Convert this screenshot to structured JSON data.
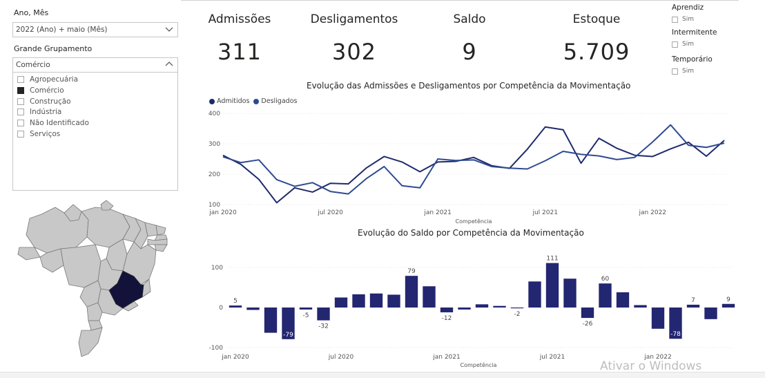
{
  "filters": {
    "period_title": "Ano, Mês",
    "period_value": "2022 (Ano) + maio (Mês)",
    "group_title": "Grande Grupamento",
    "group_value": "Comércio",
    "group_options": [
      {
        "label": "Agropecuária",
        "checked": false
      },
      {
        "label": "Comércio",
        "checked": true
      },
      {
        "label": "Construção",
        "checked": false
      },
      {
        "label": "Indústria",
        "checked": false
      },
      {
        "label": "Não Identificado",
        "checked": false
      },
      {
        "label": "Serviços",
        "checked": false
      }
    ]
  },
  "kpis": {
    "admissoes_label": "Admissões",
    "admissoes_value": "311",
    "desligamentos_label": "Desligamentos",
    "desligamentos_value": "302",
    "saldo_label": "Saldo",
    "saldo_value": "9",
    "estoque_label": "Estoque",
    "estoque_value": "5.709"
  },
  "side_filters": {
    "aprendiz": "Aprendiz",
    "intermitente": "Intermitente",
    "temporario": "Temporário",
    "option_label": "Sim"
  },
  "map": {
    "highlight_color": "#12123a",
    "base_color": "#c8c8c8",
    "highlighted_state": "Minas Gerais"
  },
  "colors": {
    "admitidos": "#1f2a6b",
    "desligados": "#2e4a93",
    "bars": "#232670"
  },
  "chart_data": [
    {
      "type": "line",
      "title": "Evolução das Admissões e Desligamentos por Competência da Movimentação",
      "xlabel": "Competência",
      "ylabel": "",
      "ylim": [
        100,
        400
      ],
      "yticks": [
        100,
        200,
        300,
        400
      ],
      "xtick_labels": [
        "jan 2020",
        "jul 2020",
        "jan 2021",
        "jul 2021",
        "jan 2022"
      ],
      "xtick_index": [
        0,
        6,
        12,
        18,
        24
      ],
      "x": [
        "2020-01",
        "2020-02",
        "2020-03",
        "2020-04",
        "2020-05",
        "2020-06",
        "2020-07",
        "2020-08",
        "2020-09",
        "2020-10",
        "2020-11",
        "2020-12",
        "2021-01",
        "2021-02",
        "2021-03",
        "2021-04",
        "2021-05",
        "2021-06",
        "2021-07",
        "2021-08",
        "2021-09",
        "2021-10",
        "2021-11",
        "2021-12",
        "2022-01",
        "2022-02",
        "2022-03",
        "2022-04",
        "2022-05"
      ],
      "legend_position": "top-left",
      "series": [
        {
          "name": "Admitidos",
          "values": [
            262,
            232,
            183,
            106,
            155,
            141,
            170,
            168,
            220,
            258,
            240,
            208,
            240,
            242,
            255,
            228,
            219,
            282,
            355,
            346,
            236,
            318,
            285,
            262,
            258,
            283,
            305,
            259,
            311
          ]
        },
        {
          "name": "Desligados",
          "values": [
            257,
            238,
            247,
            182,
            160,
            172,
            143,
            135,
            185,
            225,
            162,
            155,
            250,
            245,
            247,
            225,
            220,
            217,
            244,
            275,
            265,
            260,
            248,
            255,
            306,
            362,
            295,
            288,
            302
          ]
        }
      ]
    },
    {
      "type": "bar",
      "title": "Evolução do Saldo por Competência da Movimentação",
      "xlabel": "Competência",
      "ylabel": "",
      "ylim": [
        -100,
        130
      ],
      "yticks": [
        -100,
        0,
        100
      ],
      "xtick_labels": [
        "jan 2020",
        "jul 2020",
        "jan 2021",
        "jul 2021",
        "jan 2022"
      ],
      "xtick_index": [
        0,
        6,
        12,
        18,
        24
      ],
      "x": [
        "2020-01",
        "2020-02",
        "2020-03",
        "2020-04",
        "2020-05",
        "2020-06",
        "2020-07",
        "2020-08",
        "2020-09",
        "2020-10",
        "2020-11",
        "2020-12",
        "2021-01",
        "2021-02",
        "2021-03",
        "2021-04",
        "2021-05",
        "2021-06",
        "2021-07",
        "2021-08",
        "2021-09",
        "2021-10",
        "2021-11",
        "2021-12",
        "2022-01",
        "2022-02",
        "2022-03",
        "2022-04",
        "2022-05"
      ],
      "values": [
        5,
        -6,
        -63,
        -79,
        -5,
        -32,
        25,
        33,
        35,
        32,
        79,
        53,
        -12,
        -5,
        8,
        4,
        -2,
        65,
        111,
        72,
        -26,
        60,
        38,
        6,
        -53,
        -78,
        7,
        -29,
        9
      ],
      "data_labels": {
        "0": "5",
        "3": "-79",
        "4": "-5",
        "5": "-32",
        "10": "79",
        "12": "-12",
        "16": "-2",
        "18": "111",
        "20": "-26",
        "21": "60",
        "25": "-78",
        "26": "7",
        "28": "9"
      }
    }
  ],
  "watermark": "Ativar o Windows"
}
